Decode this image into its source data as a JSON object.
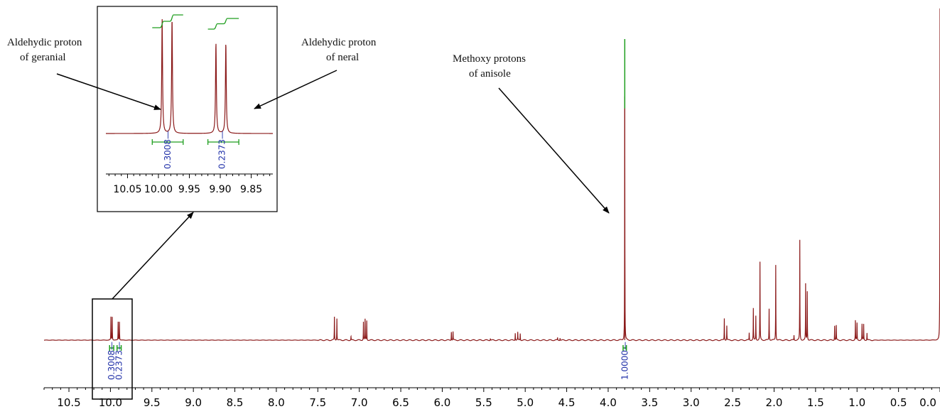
{
  "chart_data": {
    "type": "line",
    "title": "",
    "xlabel": "",
    "ylabel": "",
    "x_reversed": true,
    "xlim": [
      10.8,
      0.0
    ],
    "x_ticks": [
      "10.5",
      "10.0",
      "9.5",
      "9.0",
      "8.5",
      "8.0",
      "7.5",
      "7.0",
      "6.5",
      "6.0",
      "5.5",
      "5.0",
      "4.5",
      "4.0",
      "3.5",
      "3.0",
      "2.5",
      "2.0",
      "1.5",
      "1.0",
      "0.5",
      "0.0"
    ],
    "x_tick_values": [
      10.5,
      10.0,
      9.5,
      9.0,
      8.5,
      8.0,
      7.5,
      7.0,
      6.5,
      6.0,
      5.5,
      5.0,
      4.5,
      4.0,
      3.5,
      3.0,
      2.5,
      2.0,
      1.5,
      1.0,
      0.5,
      0.0
    ],
    "peaks": [
      {
        "x": 9.994,
        "y": 0.095
      },
      {
        "x": 9.978,
        "y": 0.095
      },
      {
        "x": 9.907,
        "y": 0.075
      },
      {
        "x": 9.891,
        "y": 0.075
      },
      {
        "x": 7.3,
        "y": 0.095
      },
      {
        "x": 7.27,
        "y": 0.09
      },
      {
        "x": 7.1,
        "y": 0.015
      },
      {
        "x": 6.95,
        "y": 0.075
      },
      {
        "x": 6.93,
        "y": 0.085
      },
      {
        "x": 6.91,
        "y": 0.08
      },
      {
        "x": 5.89,
        "y": 0.035
      },
      {
        "x": 5.87,
        "y": 0.035
      },
      {
        "x": 5.42,
        "y": 0.008
      },
      {
        "x": 5.12,
        "y": 0.03
      },
      {
        "x": 5.09,
        "y": 0.032
      },
      {
        "x": 5.06,
        "y": 0.028
      },
      {
        "x": 4.61,
        "y": 0.01
      },
      {
        "x": 4.58,
        "y": 0.01
      },
      {
        "x": 3.8,
        "y": 1.0
      },
      {
        "x": 2.6,
        "y": 0.09
      },
      {
        "x": 2.57,
        "y": 0.06
      },
      {
        "x": 2.3,
        "y": 0.03
      },
      {
        "x": 2.25,
        "y": 0.13
      },
      {
        "x": 2.22,
        "y": 0.1
      },
      {
        "x": 2.17,
        "y": 0.32
      },
      {
        "x": 2.06,
        "y": 0.13
      },
      {
        "x": 1.98,
        "y": 0.31
      },
      {
        "x": 1.76,
        "y": 0.02
      },
      {
        "x": 1.69,
        "y": 0.41
      },
      {
        "x": 1.62,
        "y": 0.23
      },
      {
        "x": 1.6,
        "y": 0.2
      },
      {
        "x": 1.27,
        "y": 0.06
      },
      {
        "x": 1.25,
        "y": 0.06
      },
      {
        "x": 1.02,
        "y": 0.08
      },
      {
        "x": 1.0,
        "y": 0.07
      },
      {
        "x": 0.94,
        "y": 0.065
      },
      {
        "x": 0.92,
        "y": 0.065
      },
      {
        "x": 0.88,
        "y": 0.03
      },
      {
        "x": 0.0,
        "y": 1.36
      }
    ],
    "integrals": [
      {
        "label": "0.3008",
        "from": 10.01,
        "to": 9.96,
        "center": 9.985
      },
      {
        "label": "0.2373",
        "from": 9.92,
        "to": 9.87,
        "center": 9.897
      },
      {
        "label": "1.0000",
        "from": 3.82,
        "to": 3.78,
        "center": 3.8
      }
    ],
    "inset": {
      "xlim": [
        10.085,
        9.815
      ],
      "x_ticks": [
        "10.05",
        "10.00",
        "9.95",
        "9.90",
        "9.85"
      ],
      "x_tick_values": [
        10.05,
        10.0,
        9.95,
        9.9,
        9.85
      ],
      "integrals": [
        {
          "label": "0.3008",
          "from": 10.01,
          "to": 9.96,
          "center": 9.985
        },
        {
          "label": "0.2373",
          "from": 9.92,
          "to": 9.87,
          "center": 9.897
        }
      ]
    },
    "annotations": [
      {
        "lines": [
          "Aldehydic proton",
          "of geranial"
        ]
      },
      {
        "lines": [
          "Aldehydic proton",
          "of neral"
        ]
      },
      {
        "lines": [
          "Methoxy protons",
          "of anisole"
        ]
      }
    ],
    "colors": {
      "spectrum": "#8b1a1a",
      "integral_curve": "#1e9e1e",
      "integral_label": "#1f2fa8"
    }
  }
}
